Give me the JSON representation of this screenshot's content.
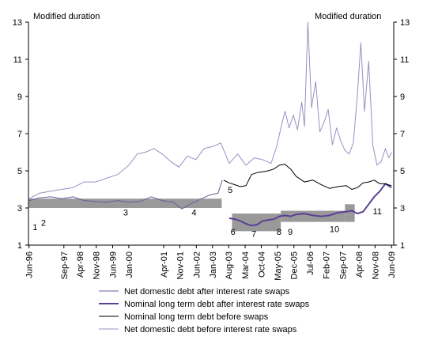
{
  "chart_data": {
    "type": "line",
    "left_axis_title": "Modified duration",
    "right_axis_title": "Modified duration",
    "ylim": [
      1,
      13
    ],
    "y_ticks": [
      1,
      3,
      5,
      7,
      9,
      11,
      13
    ],
    "x_range": [
      1996.4,
      2009.5
    ],
    "x_ticks": [
      {
        "label": "Jun-96",
        "x": 1996.42
      },
      {
        "label": "Sep-97",
        "x": 1997.67
      },
      {
        "label": "Apr-98",
        "x": 1998.25
      },
      {
        "label": "Nov-98",
        "x": 1998.83
      },
      {
        "label": "Jun-99",
        "x": 1999.42
      },
      {
        "label": "Jan-00",
        "x": 2000.0
      },
      {
        "label": "Apr-01",
        "x": 2001.25
      },
      {
        "label": "Nov-01",
        "x": 2001.83
      },
      {
        "label": "Jun-02",
        "x": 2002.42
      },
      {
        "label": "Jan-03",
        "x": 2003.0
      },
      {
        "label": "Aug-03",
        "x": 2003.58
      },
      {
        "label": "Mar-04",
        "x": 2004.17
      },
      {
        "label": "Oct-04",
        "x": 2004.75
      },
      {
        "label": "May-05",
        "x": 2005.33
      },
      {
        "label": "Dec-05",
        "x": 2005.92
      },
      {
        "label": "Jul-06",
        "x": 2006.5
      },
      {
        "label": "Feb-07",
        "x": 2007.08
      },
      {
        "label": "Sep-07",
        "x": 2007.67
      },
      {
        "label": "Apr-08",
        "x": 2008.25
      },
      {
        "label": "Nov-08",
        "x": 2008.83
      },
      {
        "label": "Jun-09",
        "x": 2009.42
      }
    ],
    "bands": [
      {
        "x0": 1996.42,
        "x1": 2003.33,
        "y0": 3.0,
        "y1": 3.5
      },
      {
        "x0": 2003.7,
        "x1": 2005.45,
        "y0": 1.75,
        "y1": 2.7
      },
      {
        "x0": 2005.45,
        "x1": 2007.75,
        "y0": 2.25,
        "y1": 2.85
      },
      {
        "x0": 2007.75,
        "x1": 2008.1,
        "y0": 2.25,
        "y1": 3.2
      }
    ],
    "annotations": [
      {
        "text": "1",
        "x": 1996.55,
        "y": 1.8
      },
      {
        "text": "2",
        "x": 1996.85,
        "y": 2.05
      },
      {
        "text": "3",
        "x": 1999.8,
        "y": 2.6
      },
      {
        "text": "4",
        "x": 2002.25,
        "y": 2.6
      },
      {
        "text": "5",
        "x": 2003.55,
        "y": 3.8
      },
      {
        "text": "6",
        "x": 2003.65,
        "y": 1.55
      },
      {
        "text": "7",
        "x": 2004.4,
        "y": 1.45
      },
      {
        "text": "8",
        "x": 2005.3,
        "y": 1.55
      },
      {
        "text": "9",
        "x": 2005.7,
        "y": 1.55
      },
      {
        "text": "10",
        "x": 2007.2,
        "y": 1.7
      },
      {
        "text": "11",
        "x": 2008.75,
        "y": 2.65
      }
    ],
    "series": [
      {
        "name": "Net domestic debt after interest rate swaps",
        "color": "#6b5a9c",
        "width": 1,
        "x": [
          1996.42,
          1996.8,
          1997.2,
          1997.6,
          1998.0,
          1998.4,
          1998.8,
          1999.2,
          1999.6,
          2000.0,
          2000.4,
          2000.8,
          2001.2,
          2001.6,
          2001.9,
          2002.2,
          2002.6,
          2002.9,
          2003.2,
          2003.35
        ],
        "y": [
          3.4,
          3.55,
          3.6,
          3.5,
          3.6,
          3.4,
          3.35,
          3.3,
          3.4,
          3.3,
          3.35,
          3.6,
          3.4,
          3.3,
          2.95,
          3.2,
          3.5,
          3.7,
          3.8,
          4.5
        ]
      },
      {
        "name": "Nominal long term debt after interest rate swaps",
        "color": "#5b3f96",
        "width": 2,
        "x": [
          2003.6,
          2003.8,
          2004.0,
          2004.2,
          2004.4,
          2004.6,
          2004.8,
          2005.0,
          2005.2,
          2005.4,
          2005.6,
          2005.8,
          2006.0,
          2006.3,
          2006.6,
          2006.9,
          2007.2,
          2007.5,
          2007.8,
          2008.0,
          2008.2,
          2008.4,
          2008.6,
          2008.8,
          2009.0,
          2009.2,
          2009.42
        ],
        "y": [
          2.45,
          2.4,
          2.3,
          2.15,
          2.05,
          2.1,
          2.3,
          2.35,
          2.4,
          2.55,
          2.6,
          2.55,
          2.65,
          2.7,
          2.6,
          2.55,
          2.6,
          2.75,
          2.8,
          2.85,
          2.7,
          2.8,
          3.2,
          3.6,
          3.9,
          4.3,
          4.1
        ]
      },
      {
        "name": "Nominal long term debt before swaps",
        "color": "#000000",
        "width": 1,
        "x": [
          2003.4,
          2003.6,
          2003.8,
          2004.0,
          2004.2,
          2004.4,
          2004.6,
          2004.8,
          2005.0,
          2005.2,
          2005.4,
          2005.6,
          2005.8,
          2006.0,
          2006.3,
          2006.6,
          2006.9,
          2007.2,
          2007.5,
          2007.8,
          2008.0,
          2008.2,
          2008.4,
          2008.6,
          2008.8,
          2009.0,
          2009.2,
          2009.42
        ],
        "y": [
          4.5,
          4.35,
          4.25,
          4.15,
          4.2,
          4.8,
          4.9,
          4.95,
          5.0,
          5.1,
          5.3,
          5.35,
          5.1,
          4.7,
          4.4,
          4.5,
          4.25,
          4.05,
          4.15,
          4.2,
          4.0,
          4.1,
          4.35,
          4.4,
          4.5,
          4.3,
          4.3,
          4.2
        ]
      },
      {
        "name": "Net domestic debt before interest rate swaps",
        "color": "#9b8fc4",
        "width": 1,
        "x": [
          1996.42,
          1996.8,
          1997.2,
          1997.6,
          1998.0,
          1998.4,
          1998.8,
          1999.2,
          1999.6,
          2000.0,
          2000.3,
          2000.6,
          2000.9,
          2001.2,
          2001.5,
          2001.8,
          2002.1,
          2002.4,
          2002.7,
          2003.0,
          2003.3,
          2003.6,
          2003.9,
          2004.2,
          2004.5,
          2004.8,
          2005.1,
          2005.3,
          2005.5,
          2005.6,
          2005.75,
          2005.9,
          2006.05,
          2006.2,
          2006.3,
          2006.42,
          2006.55,
          2006.7,
          2006.85,
          2007.0,
          2007.15,
          2007.3,
          2007.45,
          2007.6,
          2007.75,
          2007.9,
          2008.05,
          2008.2,
          2008.32,
          2008.45,
          2008.6,
          2008.75,
          2008.9,
          2009.05,
          2009.2,
          2009.32,
          2009.42
        ],
        "y": [
          3.5,
          3.8,
          3.9,
          4.0,
          4.1,
          4.4,
          4.4,
          4.6,
          4.8,
          5.3,
          5.9,
          6.0,
          6.2,
          5.9,
          5.5,
          5.2,
          5.8,
          5.6,
          6.2,
          6.3,
          6.5,
          5.4,
          5.9,
          5.3,
          5.7,
          5.6,
          5.4,
          6.3,
          7.6,
          8.2,
          7.3,
          8.0,
          7.2,
          8.7,
          7.4,
          13.0,
          8.4,
          9.8,
          7.1,
          7.6,
          8.3,
          6.4,
          7.3,
          6.6,
          6.1,
          5.9,
          6.5,
          9.2,
          11.9,
          8.2,
          10.9,
          6.4,
          5.3,
          5.5,
          6.2,
          5.7,
          6.0
        ]
      }
    ],
    "legend_position": "bottom"
  }
}
